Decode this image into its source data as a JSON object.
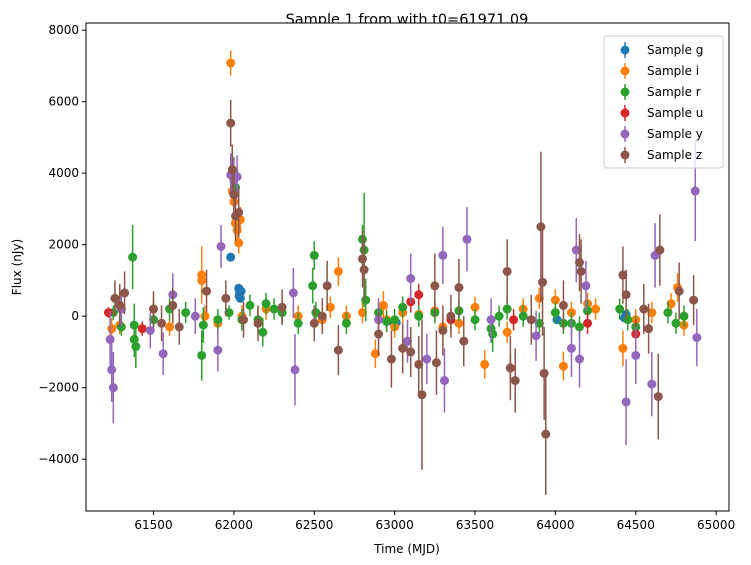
{
  "chart_data": {
    "type": "scatter",
    "title": "Sample 1 from with t0=61971.09",
    "xlabel": "Time (MJD)",
    "ylabel": "Flux (nJy)",
    "xlim": [
      61080,
      65080
    ],
    "ylim": [
      -5450,
      8200
    ],
    "xticks": [
      "61500",
      "62000",
      "62500",
      "63000",
      "63500",
      "64000",
      "64500",
      "65000"
    ],
    "yticks": [
      "−4000",
      "−2000",
      "0",
      "2000",
      "4000",
      "6000",
      "8000"
    ],
    "grid": false,
    "legend_position": "top-right",
    "error_bars": true,
    "series": [
      {
        "name": "Sample g",
        "color": "#1f77b4",
        "points": [
          [
            61980,
            1650,
            100
          ],
          [
            62030,
            780,
            60
          ],
          [
            62035,
            650,
            60
          ],
          [
            62040,
            500,
            60
          ],
          [
            62045,
            700,
            60
          ],
          [
            62033,
            560,
            60
          ],
          [
            62990,
            -150,
            150
          ],
          [
            63010,
            -180,
            150
          ],
          [
            64010,
            -100,
            120
          ],
          [
            64440,
            50,
            120
          ],
          [
            64430,
            -50,
            120
          ]
        ]
      },
      {
        "name": "Sample i",
        "color": "#ff7f0e",
        "points": [
          [
            61240,
            -350,
            300
          ],
          [
            61290,
            -250,
            250
          ],
          [
            61500,
            200,
            300
          ],
          [
            61600,
            -300,
            250
          ],
          [
            61800,
            1150,
            800
          ],
          [
            61800,
            1000,
            500
          ],
          [
            61820,
            0,
            300
          ],
          [
            61900,
            -200,
            300
          ],
          [
            61980,
            7080,
            350
          ],
          [
            61990,
            3500,
            400
          ],
          [
            62000,
            3200,
            350
          ],
          [
            62010,
            2600,
            350
          ],
          [
            62020,
            2400,
            300
          ],
          [
            62030,
            2050,
            300
          ],
          [
            62040,
            2700,
            350
          ],
          [
            62050,
            0,
            300
          ],
          [
            62200,
            200,
            300
          ],
          [
            62400,
            0,
            300
          ],
          [
            62550,
            -100,
            300
          ],
          [
            62600,
            250,
            300
          ],
          [
            62650,
            1250,
            400
          ],
          [
            62700,
            0,
            300
          ],
          [
            62800,
            100,
            300
          ],
          [
            62880,
            -1050,
            400
          ],
          [
            62930,
            300,
            400
          ],
          [
            62950,
            -100,
            300
          ],
          [
            63000,
            -300,
            300
          ],
          [
            63050,
            100,
            300
          ],
          [
            63150,
            50,
            300
          ],
          [
            63250,
            150,
            300
          ],
          [
            63300,
            -300,
            300
          ],
          [
            63400,
            -200,
            300
          ],
          [
            63500,
            250,
            300
          ],
          [
            63560,
            -1350,
            400
          ],
          [
            63700,
            -450,
            300
          ],
          [
            63800,
            200,
            300
          ],
          [
            63900,
            500,
            300
          ],
          [
            64000,
            450,
            300
          ],
          [
            64050,
            -1400,
            400
          ],
          [
            64100,
            100,
            300
          ],
          [
            64200,
            350,
            300
          ],
          [
            64250,
            200,
            300
          ],
          [
            64420,
            -900,
            500
          ],
          [
            64500,
            -100,
            300
          ],
          [
            64600,
            100,
            300
          ],
          [
            64720,
            350,
            300
          ],
          [
            64760,
            800,
            400
          ],
          [
            64800,
            -250,
            300
          ]
        ]
      },
      {
        "name": "Sample r",
        "color": "#2ca02c",
        "points": [
          [
            61250,
            100,
            200
          ],
          [
            61300,
            -300,
            250
          ],
          [
            61370,
            1650,
            900
          ],
          [
            61380,
            -250,
            600
          ],
          [
            61380,
            -650,
            500
          ],
          [
            61390,
            -850,
            600
          ],
          [
            61500,
            -100,
            300
          ],
          [
            61600,
            200,
            300
          ],
          [
            61700,
            100,
            300
          ],
          [
            61800,
            -1100,
            700
          ],
          [
            61810,
            -250,
            500
          ],
          [
            61900,
            -100,
            300
          ],
          [
            61970,
            100,
            200
          ],
          [
            62000,
            4050,
            400
          ],
          [
            62010,
            3600,
            400
          ],
          [
            62050,
            -100,
            300
          ],
          [
            62100,
            300,
            300
          ],
          [
            62150,
            -100,
            300
          ],
          [
            62180,
            -450,
            400
          ],
          [
            62200,
            350,
            300
          ],
          [
            62250,
            200,
            300
          ],
          [
            62300,
            100,
            300
          ],
          [
            62400,
            -200,
            300
          ],
          [
            62490,
            850,
            500
          ],
          [
            62500,
            1700,
            400
          ],
          [
            62510,
            100,
            300
          ],
          [
            62700,
            -200,
            300
          ],
          [
            62800,
            2150,
            400
          ],
          [
            62810,
            1850,
            1600
          ],
          [
            62820,
            450,
            600
          ],
          [
            62900,
            100,
            300
          ],
          [
            62950,
            -150,
            300
          ],
          [
            63000,
            -100,
            300
          ],
          [
            63050,
            250,
            300
          ],
          [
            63150,
            0,
            300
          ],
          [
            63250,
            100,
            300
          ],
          [
            63400,
            150,
            300
          ],
          [
            63500,
            -100,
            300
          ],
          [
            63600,
            -350,
            400
          ],
          [
            63610,
            -500,
            500
          ],
          [
            63650,
            0,
            300
          ],
          [
            63700,
            200,
            300
          ],
          [
            63800,
            0,
            300
          ],
          [
            63900,
            -200,
            300
          ],
          [
            64000,
            100,
            300
          ],
          [
            64050,
            -200,
            300
          ],
          [
            64100,
            -200,
            300
          ],
          [
            64150,
            -300,
            300
          ],
          [
            64200,
            150,
            300
          ],
          [
            64400,
            200,
            300
          ],
          [
            64450,
            -100,
            300
          ],
          [
            64500,
            -300,
            300
          ],
          [
            64700,
            100,
            300
          ],
          [
            64750,
            -200,
            300
          ],
          [
            64800,
            0,
            300
          ]
        ]
      },
      {
        "name": "Sample u",
        "color": "#d62728",
        "points": [
          [
            61220,
            100,
            150
          ],
          [
            61430,
            -350,
            200
          ],
          [
            63100,
            400,
            300
          ],
          [
            63150,
            600,
            300
          ],
          [
            63350,
            -100,
            300
          ],
          [
            63720,
            -1450,
            400
          ],
          [
            63740,
            -100,
            300
          ],
          [
            64200,
            -200,
            300
          ],
          [
            64500,
            -500,
            400
          ]
        ]
      },
      {
        "name": "Sample y",
        "color": "#9467bd",
        "points": [
          [
            61230,
            -650,
            800
          ],
          [
            61240,
            -1500,
            900
          ],
          [
            61250,
            -2000,
            1000
          ],
          [
            61300,
            200,
            500
          ],
          [
            61480,
            -400,
            500
          ],
          [
            61560,
            -1050,
            600
          ],
          [
            61620,
            600,
            600
          ],
          [
            61760,
            0,
            500
          ],
          [
            61900,
            -950,
            600
          ],
          [
            61920,
            1950,
            600
          ],
          [
            61980,
            3950,
            600
          ],
          [
            62000,
            3800,
            600
          ],
          [
            62020,
            3900,
            600
          ],
          [
            62370,
            650,
            700
          ],
          [
            62380,
            -1500,
            1000
          ],
          [
            62900,
            -100,
            600
          ],
          [
            63080,
            -700,
            600
          ],
          [
            63100,
            1050,
            700
          ],
          [
            63200,
            -1200,
            700
          ],
          [
            63300,
            1700,
            800
          ],
          [
            63310,
            -1800,
            900
          ],
          [
            63450,
            2150,
            900
          ],
          [
            63600,
            -100,
            600
          ],
          [
            63880,
            -550,
            700
          ],
          [
            64100,
            -900,
            800
          ],
          [
            64130,
            1850,
            900
          ],
          [
            64150,
            -1200,
            800
          ],
          [
            64190,
            850,
            700
          ],
          [
            64440,
            -2400,
            1200
          ],
          [
            64500,
            -1100,
            800
          ],
          [
            64600,
            -1900,
            900
          ],
          [
            64620,
            1700,
            900
          ],
          [
            64870,
            3500,
            1400
          ],
          [
            64880,
            -600,
            800
          ]
        ]
      },
      {
        "name": "Sample z",
        "color": "#8c564b",
        "points": [
          [
            61260,
            500,
            500
          ],
          [
            61290,
            300,
            600
          ],
          [
            61320,
            650,
            600
          ],
          [
            61500,
            200,
            500
          ],
          [
            61550,
            -200,
            500
          ],
          [
            61620,
            300,
            500
          ],
          [
            61660,
            -300,
            500
          ],
          [
            61830,
            700,
            600
          ],
          [
            61950,
            500,
            500
          ],
          [
            61980,
            5400,
            650
          ],
          [
            61990,
            4100,
            700
          ],
          [
            62000,
            3400,
            700
          ],
          [
            62010,
            2800,
            700
          ],
          [
            62030,
            2900,
            700
          ],
          [
            62060,
            -100,
            500
          ],
          [
            62150,
            -200,
            500
          ],
          [
            62300,
            250,
            500
          ],
          [
            62500,
            -200,
            500
          ],
          [
            62550,
            0,
            500
          ],
          [
            62580,
            850,
            700
          ],
          [
            62650,
            -950,
            700
          ],
          [
            62800,
            1600,
            800
          ],
          [
            62810,
            1300,
            900
          ],
          [
            62900,
            -500,
            600
          ],
          [
            62980,
            -1200,
            800
          ],
          [
            63050,
            -900,
            700
          ],
          [
            63100,
            -1000,
            700
          ],
          [
            63150,
            -1350,
            800
          ],
          [
            63170,
            -2200,
            2100
          ],
          [
            63250,
            850,
            900
          ],
          [
            63260,
            -1300,
            900
          ],
          [
            63300,
            -400,
            700
          ],
          [
            63350,
            0,
            600
          ],
          [
            63400,
            800,
            800
          ],
          [
            63430,
            -700,
            700
          ],
          [
            63700,
            1250,
            900
          ],
          [
            63720,
            -1450,
            900
          ],
          [
            63750,
            -1800,
            900
          ],
          [
            63850,
            -100,
            700
          ],
          [
            63910,
            2500,
            2100
          ],
          [
            63920,
            950,
            1500
          ],
          [
            63930,
            -1600,
            1300
          ],
          [
            63940,
            -3300,
            1700
          ],
          [
            64050,
            300,
            700
          ],
          [
            64150,
            1500,
            800
          ],
          [
            64160,
            1250,
            900
          ],
          [
            64420,
            1150,
            800
          ],
          [
            64440,
            600,
            700
          ],
          [
            64550,
            200,
            700
          ],
          [
            64580,
            -350,
            700
          ],
          [
            64640,
            -2250,
            1200
          ],
          [
            64650,
            1850,
            1000
          ],
          [
            64770,
            700,
            800
          ],
          [
            64860,
            450,
            700
          ]
        ]
      }
    ]
  }
}
